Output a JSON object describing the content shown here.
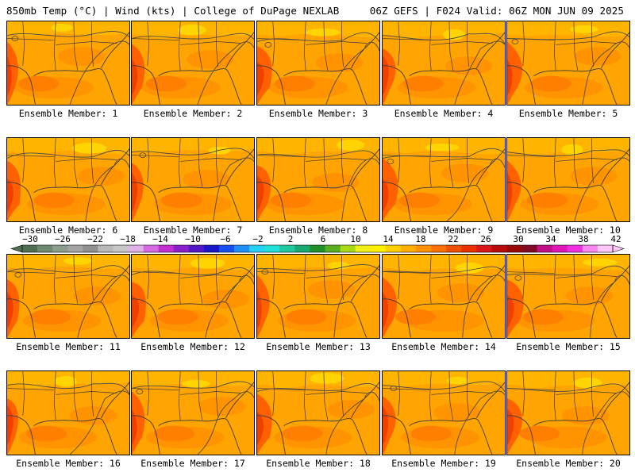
{
  "header": {
    "left": "850mb Temp (°C) | Wind (kts) | College of DuPage NEXLAB",
    "right": "06Z GEFS | F024 Valid: 06Z MON JUN 09 2025"
  },
  "members": [
    {
      "label": "Ensemble Member: 1"
    },
    {
      "label": "Ensemble Member: 2"
    },
    {
      "label": "Ensemble Member: 3"
    },
    {
      "label": "Ensemble Member: 4"
    },
    {
      "label": "Ensemble Member: 5"
    },
    {
      "label": "Ensemble Member: 6"
    },
    {
      "label": "Ensemble Member: 7"
    },
    {
      "label": "Ensemble Member: 8"
    },
    {
      "label": "Ensemble Member: 9"
    },
    {
      "label": "Ensemble Member: 10"
    },
    {
      "label": "Ensemble Member: 11"
    },
    {
      "label": "Ensemble Member: 12"
    },
    {
      "label": "Ensemble Member: 13"
    },
    {
      "label": "Ensemble Member: 14"
    },
    {
      "label": "Ensemble Member: 15"
    },
    {
      "label": "Ensemble Member: 16"
    },
    {
      "label": "Ensemble Member: 17"
    },
    {
      "label": "Ensemble Member: 18"
    },
    {
      "label": "Ensemble Member: 19"
    },
    {
      "label": "Ensemble Member: 20"
    }
  ],
  "colorbar": {
    "tick_labels": [
      "−30",
      "−26",
      "−22",
      "−18",
      "−14",
      "−10",
      "−6",
      "−2",
      "2",
      "6",
      "10",
      "14",
      "18",
      "22",
      "26",
      "30",
      "34",
      "38",
      "42"
    ],
    "colors": [
      "#4f6e52",
      "#6f8a70",
      "#8d9c8d",
      "#a4a4a4",
      "#8f8f8f",
      "#b8b8b8",
      "#c7c7c7",
      "#e0b0e8",
      "#d46be0",
      "#c030d0",
      "#8a20c8",
      "#5418c8",
      "#1818c8",
      "#1850f0",
      "#1c90f8",
      "#28d0f8",
      "#20e0d8",
      "#20c8a0",
      "#18a870",
      "#20902c",
      "#58b020",
      "#a8d818",
      "#f0f018",
      "#fff000",
      "#ffd000",
      "#ffae00",
      "#ff9200",
      "#ff7200",
      "#f05000",
      "#e83000",
      "#d81818",
      "#b80c0c",
      "#980808",
      "#800a28",
      "#c01088",
      "#e018b8",
      "#f030e0",
      "#f888f0",
      "#ffc8f8"
    ],
    "fill_colors": [
      "#ffb400",
      "#ffa400",
      "#ff9400",
      "#ff8000",
      "#ff6000",
      "#f04000"
    ]
  }
}
